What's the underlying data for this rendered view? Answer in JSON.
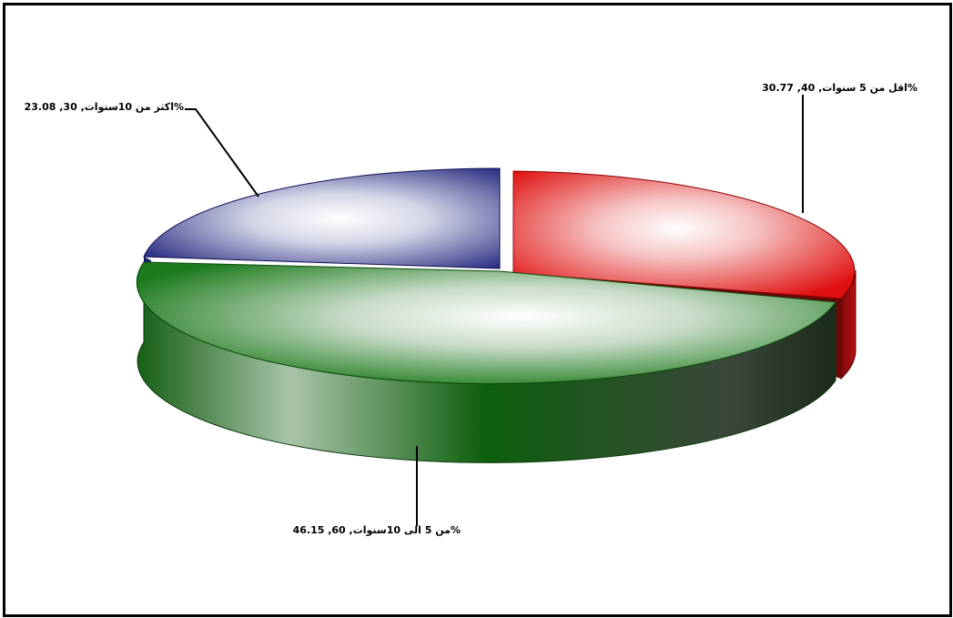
{
  "chart_data": {
    "type": "pie",
    "slices": [
      {
        "label": "اقل من 5 سنوات",
        "value": 40,
        "percent": "30.77",
        "color": "#e01414",
        "text": "اقل من 5 سنوات, 40, 30.77%"
      },
      {
        "label": "من 5 الى 10 سنوات",
        "value": 60,
        "percent": "46.15",
        "color": "#0f6a0f",
        "text": "من 5 الى 10سنوات, 60, 46.15%"
      },
      {
        "label": "اكثر من 10 سنوات",
        "value": 30,
        "percent": "23.08",
        "color": "#1c1f7a",
        "text": "اكثر من 10سنوات, 30, 23.08%"
      }
    ]
  }
}
